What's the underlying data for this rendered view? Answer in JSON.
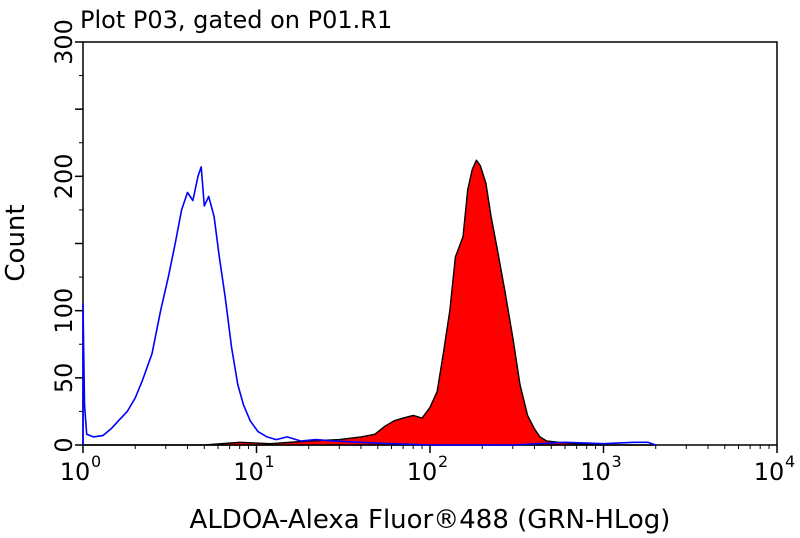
{
  "chart_data": {
    "type": "area",
    "title": "Plot P03, gated on P01.R1",
    "xlabel": "ALDOA-Alexa Fluor®488 (GRN-HLog)",
    "ylabel": "Count",
    "xscale": "log",
    "xlim": [
      1,
      10000
    ],
    "ylim": [
      0,
      300
    ],
    "x_ticks": [
      {
        "base": "10",
        "exp": "0"
      },
      {
        "base": "10",
        "exp": "1"
      },
      {
        "base": "10",
        "exp": "2"
      },
      {
        "base": "10",
        "exp": "3"
      },
      {
        "base": "10",
        "exp": "4"
      }
    ],
    "y_ticks": [
      "0",
      "50",
      "100",
      "200",
      "300"
    ],
    "y_tick_values": [
      0,
      50,
      100,
      200,
      300
    ],
    "grid": false,
    "series": [
      {
        "color": "#0000ff",
        "fill": "none",
        "points": [
          [
            1.0,
            0
          ],
          [
            1.0,
            105
          ],
          [
            1.02,
            30
          ],
          [
            1.05,
            8
          ],
          [
            1.15,
            6
          ],
          [
            1.3,
            7
          ],
          [
            1.45,
            12
          ],
          [
            1.6,
            18
          ],
          [
            1.8,
            25
          ],
          [
            2.0,
            35
          ],
          [
            2.2,
            48
          ],
          [
            2.5,
            68
          ],
          [
            2.8,
            100
          ],
          [
            3.1,
            125
          ],
          [
            3.4,
            150
          ],
          [
            3.7,
            175
          ],
          [
            4.0,
            188
          ],
          [
            4.3,
            182
          ],
          [
            4.6,
            200
          ],
          [
            4.8,
            207
          ],
          [
            5.0,
            178
          ],
          [
            5.3,
            185
          ],
          [
            5.7,
            170
          ],
          [
            6.1,
            140
          ],
          [
            6.6,
            110
          ],
          [
            7.2,
            72
          ],
          [
            7.8,
            45
          ],
          [
            8.4,
            30
          ],
          [
            9.2,
            18
          ],
          [
            10.2,
            10
          ],
          [
            11.5,
            6
          ],
          [
            13,
            4
          ],
          [
            15,
            6
          ],
          [
            18,
            3
          ],
          [
            22,
            4
          ],
          [
            28,
            3
          ],
          [
            40,
            2
          ],
          [
            60,
            1
          ],
          [
            100,
            0
          ],
          [
            300,
            0
          ],
          [
            600,
            2
          ],
          [
            1000,
            1
          ],
          [
            1500,
            2
          ],
          [
            1800,
            2
          ],
          [
            2000,
            0
          ]
        ]
      },
      {
        "color": "#000000",
        "fill": "#ff0000",
        "points": [
          [
            1.0,
            0
          ],
          [
            3,
            0
          ],
          [
            5,
            0
          ],
          [
            8,
            2
          ],
          [
            12,
            1
          ],
          [
            20,
            3
          ],
          [
            30,
            4
          ],
          [
            40,
            6
          ],
          [
            48,
            8
          ],
          [
            55,
            14
          ],
          [
            62,
            18
          ],
          [
            70,
            20
          ],
          [
            80,
            22
          ],
          [
            90,
            20
          ],
          [
            100,
            28
          ],
          [
            110,
            40
          ],
          [
            120,
            70
          ],
          [
            130,
            100
          ],
          [
            140,
            140
          ],
          [
            155,
            155
          ],
          [
            165,
            190
          ],
          [
            175,
            205
          ],
          [
            185,
            212
          ],
          [
            195,
            208
          ],
          [
            210,
            195
          ],
          [
            225,
            170
          ],
          [
            245,
            145
          ],
          [
            270,
            115
          ],
          [
            300,
            80
          ],
          [
            330,
            45
          ],
          [
            365,
            22
          ],
          [
            400,
            12
          ],
          [
            430,
            6
          ],
          [
            470,
            3
          ],
          [
            550,
            2
          ],
          [
            700,
            1
          ],
          [
            1000,
            0
          ],
          [
            2000,
            0
          ]
        ]
      }
    ]
  }
}
